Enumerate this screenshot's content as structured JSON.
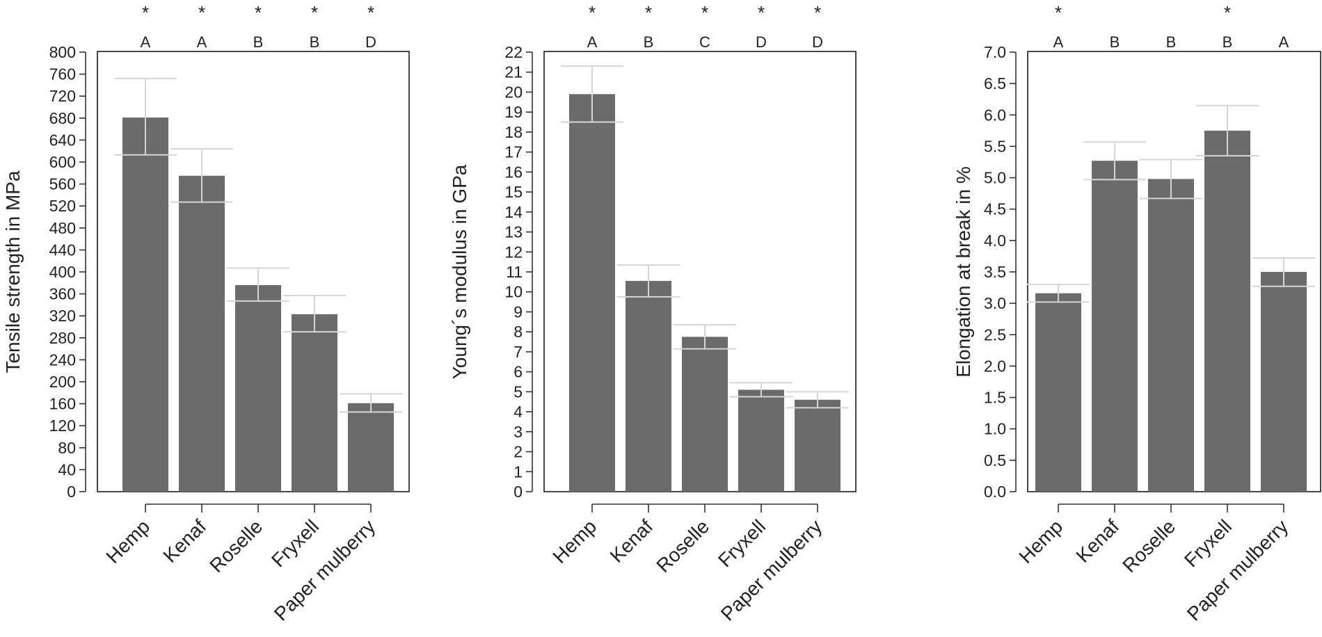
{
  "chart_data": [
    {
      "type": "bar",
      "categories": [
        "Hemp",
        "Kenaf",
        "Roselle",
        "Fryxell",
        "Paper mulberry"
      ],
      "values": [
        681,
        575,
        376,
        323,
        161
      ],
      "error_high": [
        752,
        624,
        407,
        357,
        178
      ],
      "error_low": [
        613,
        527,
        347,
        291,
        145
      ],
      "group_letters": [
        "A",
        "A",
        "B",
        "B",
        "D"
      ],
      "significance": [
        "*",
        "*",
        "*",
        "*",
        "*"
      ],
      "ylabel": "Tensile strength in MPa",
      "ylim": [
        0,
        800
      ],
      "yticks": [
        0,
        40,
        80,
        120,
        160,
        200,
        240,
        280,
        320,
        360,
        400,
        440,
        480,
        520,
        560,
        600,
        640,
        680,
        720,
        760,
        800
      ],
      "ytick_labels": [
        "0",
        "40",
        "80",
        "120",
        "160",
        "200",
        "240",
        "280",
        "320",
        "360",
        "400",
        "440",
        "480",
        "520",
        "560",
        "600",
        "640",
        "680",
        "720",
        "760",
        "800"
      ],
      "grid": false
    },
    {
      "type": "bar",
      "categories": [
        "Hemp",
        "Kenaf",
        "Roselle",
        "Fryxell",
        "Paper mulberry"
      ],
      "values": [
        19.9,
        10.55,
        7.75,
        5.1,
        4.6
      ],
      "error_high": [
        21.3,
        11.35,
        8.35,
        5.45,
        5.0
      ],
      "error_low": [
        18.5,
        9.75,
        7.15,
        4.75,
        4.2
      ],
      "group_letters": [
        "A",
        "B",
        "C",
        "D",
        "D"
      ],
      "significance": [
        "*",
        "*",
        "*",
        "*",
        "*"
      ],
      "ylabel": "Young´s modulus in GPa",
      "ylim": [
        0,
        22
      ],
      "yticks": [
        0,
        1,
        2,
        3,
        4,
        5,
        6,
        7,
        8,
        9,
        10,
        11,
        12,
        13,
        14,
        15,
        16,
        17,
        18,
        19,
        20,
        21,
        22
      ],
      "ytick_labels": [
        "0",
        "1",
        "2",
        "3",
        "4",
        "5",
        "6",
        "7",
        "8",
        "9",
        "10",
        "11",
        "12",
        "13",
        "14",
        "15",
        "16",
        "17",
        "18",
        "19",
        "20",
        "21",
        "22"
      ],
      "grid": false
    },
    {
      "type": "bar",
      "categories": [
        "Hemp",
        "Kenaf",
        "Roselle",
        "Fryxell",
        "Paper mulberry"
      ],
      "values": [
        3.16,
        5.27,
        4.98,
        5.75,
        3.5
      ],
      "error_high": [
        3.3,
        5.57,
        5.29,
        6.15,
        3.72
      ],
      "error_low": [
        3.02,
        4.97,
        4.67,
        5.35,
        3.27
      ],
      "group_letters": [
        "A",
        "B",
        "B",
        "B",
        "A"
      ],
      "significance": [
        "*",
        "",
        "",
        "*",
        ""
      ],
      "ylabel": "Elongation at break in %",
      "ylim": [
        0,
        7
      ],
      "yticks": [
        0,
        0.5,
        1,
        1.5,
        2,
        2.5,
        3,
        3.5,
        4,
        4.5,
        5,
        5.5,
        6,
        6.5,
        7
      ],
      "ytick_labels": [
        "0.0",
        "0.5",
        "1.0",
        "1.5",
        "2.0",
        "2.5",
        "3.0",
        "3.5",
        "4.0",
        "4.5",
        "5.0",
        "5.5",
        "6.0",
        "6.5",
        "7.0"
      ],
      "grid": false
    }
  ]
}
